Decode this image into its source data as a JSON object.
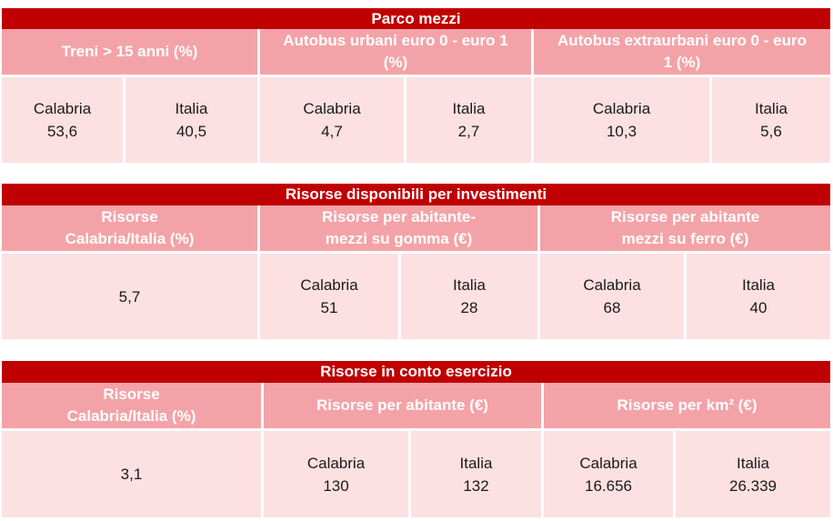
{
  "tables": [
    {
      "title": "Parco mezzi",
      "headers": [
        {
          "line1": "Treni > 15 anni (%)",
          "line2": ""
        },
        {
          "line1": "Autobus urbani euro 0 - euro 1",
          "line2": "(%)"
        },
        {
          "line1": "Autobus extraurbani euro 0 - euro",
          "line2": "1 (%)"
        }
      ],
      "cells": [
        {
          "label": "Calabria",
          "value": "53,6"
        },
        {
          "label": "Italia",
          "value": "40,5"
        },
        {
          "label": "Calabria",
          "value": "4,7"
        },
        {
          "label": "Italia",
          "value": "2,7"
        },
        {
          "label": "Calabria",
          "value": "10,3"
        },
        {
          "label": "Italia",
          "value": "5,6"
        }
      ]
    },
    {
      "title": "Risorse disponibili per investimenti",
      "headers": [
        {
          "line1": "Risorse",
          "line2": "Calabria/Italia (%)"
        },
        {
          "line1": "Risorse per abitante-",
          "line2": "mezzi su gomma (€)"
        },
        {
          "line1": "Risorse per abitante",
          "line2": "mezzi su ferro (€)"
        }
      ],
      "cells": [
        {
          "label": "",
          "value": "5,7"
        },
        {
          "label": "Calabria",
          "value": "51"
        },
        {
          "label": "Italia",
          "value": "28"
        },
        {
          "label": "Calabria",
          "value": "68"
        },
        {
          "label": "Italia",
          "value": "40"
        }
      ]
    },
    {
      "title": "Risorse in conto esercizio",
      "headers": [
        {
          "line1": "Risorse",
          "line2": "Calabria/Italia (%)"
        },
        {
          "line1": "Risorse per abitante (€)",
          "line2": ""
        },
        {
          "line1": "Risorse per km² (€)",
          "line2": ""
        }
      ],
      "cells": [
        {
          "label": "",
          "value": "3,1"
        },
        {
          "label": "Calabria",
          "value": "130"
        },
        {
          "label": "Italia",
          "value": "132"
        },
        {
          "label": "Calabria",
          "value": "16.656"
        },
        {
          "label": "Italia",
          "value": "26.339"
        }
      ]
    }
  ],
  "colors": {
    "title_bg": "#c00000",
    "header_bg": "#f3a3a8",
    "cell_bg": "#fde0e2"
  }
}
